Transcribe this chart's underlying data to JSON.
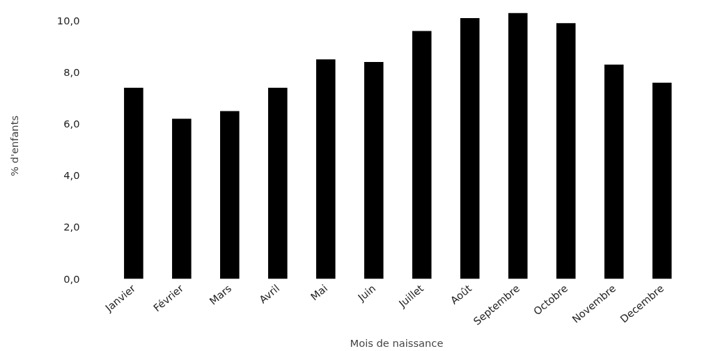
{
  "chart_data": {
    "type": "bar",
    "xlabel": "Mois de naissance",
    "ylabel": "% d'enfants",
    "categories": [
      "Janvier",
      "Février",
      "Mars",
      "Avril",
      "Mai",
      "Juin",
      "Juillet",
      "Août",
      "Septembre",
      "Octobre",
      "Novembre",
      "Decembre"
    ],
    "values": [
      7.4,
      6.2,
      6.5,
      7.4,
      8.5,
      8.4,
      9.6,
      10.1,
      10.3,
      9.9,
      8.3,
      7.6
    ],
    "color": "#000000",
    "ylim": [
      0,
      10.3
    ],
    "yticks": [
      {
        "value": 0,
        "label": "0,0"
      },
      {
        "value": 2,
        "label": "2,0"
      },
      {
        "value": 4,
        "label": "4,0"
      },
      {
        "value": 6,
        "label": "6,0"
      },
      {
        "value": 8,
        "label": "8,0"
      },
      {
        "value": 10,
        "label": "10,0"
      }
    ],
    "grid": false
  }
}
